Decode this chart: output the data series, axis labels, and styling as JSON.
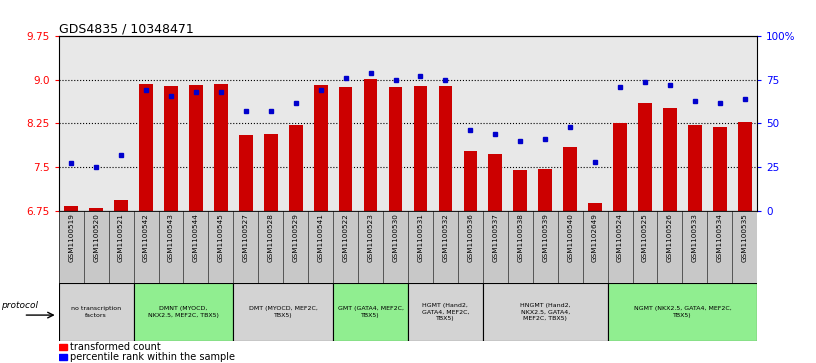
{
  "title": "GDS4835 / 10348471",
  "samples": [
    "GSM1100519",
    "GSM1100520",
    "GSM1100521",
    "GSM1100542",
    "GSM1100543",
    "GSM1100544",
    "GSM1100545",
    "GSM1100527",
    "GSM1100528",
    "GSM1100529",
    "GSM1100541",
    "GSM1100522",
    "GSM1100523",
    "GSM1100530",
    "GSM1100531",
    "GSM1100532",
    "GSM1100536",
    "GSM1100537",
    "GSM1100538",
    "GSM1100539",
    "GSM1100540",
    "GSM1102649",
    "GSM1100524",
    "GSM1100525",
    "GSM1100526",
    "GSM1100533",
    "GSM1100534",
    "GSM1100535"
  ],
  "bar_values": [
    6.82,
    6.79,
    6.93,
    8.93,
    8.9,
    8.92,
    8.93,
    8.05,
    8.07,
    8.22,
    8.91,
    8.88,
    9.02,
    8.87,
    8.9,
    8.89,
    7.78,
    7.73,
    7.45,
    7.47,
    7.84,
    6.88,
    8.26,
    8.6,
    8.52,
    8.22,
    8.19,
    8.28
  ],
  "dot_values": [
    27,
    25,
    32,
    69,
    66,
    68,
    68,
    57,
    57,
    62,
    69,
    76,
    79,
    75,
    77,
    75,
    46,
    44,
    40,
    41,
    48,
    28,
    71,
    74,
    72,
    63,
    62,
    64
  ],
  "protocol_groups": [
    {
      "label": "no transcription\nfactors",
      "start": 0,
      "end": 3,
      "color": "#d3d3d3"
    },
    {
      "label": "DMNT (MYOCD,\nNKX2.5, MEF2C, TBX5)",
      "start": 3,
      "end": 7,
      "color": "#90EE90"
    },
    {
      "label": "DMT (MYOCD, MEF2C,\nTBX5)",
      "start": 7,
      "end": 11,
      "color": "#d3d3d3"
    },
    {
      "label": "GMT (GATA4, MEF2C,\nTBX5)",
      "start": 11,
      "end": 14,
      "color": "#90EE90"
    },
    {
      "label": "HGMT (Hand2,\nGATA4, MEF2C,\nTBX5)",
      "start": 14,
      "end": 17,
      "color": "#d3d3d3"
    },
    {
      "label": "HNGMT (Hand2,\nNKX2.5, GATA4,\nMEF2C, TBX5)",
      "start": 17,
      "end": 22,
      "color": "#d3d3d3"
    },
    {
      "label": "NGMT (NKX2.5, GATA4, MEF2C,\nTBX5)",
      "start": 22,
      "end": 28,
      "color": "#90EE90"
    }
  ],
  "ylim_left": [
    6.75,
    9.75
  ],
  "ylim_right": [
    0,
    100
  ],
  "yticks_left": [
    6.75,
    7.5,
    8.25,
    9.0,
    9.75
  ],
  "yticks_right": [
    0,
    25,
    50,
    75,
    100
  ],
  "bar_color": "#CC0000",
  "dot_color": "#0000CC",
  "background_color": "#ffffff",
  "plot_bg_color": "#e8e8e8",
  "label_row_color": "#c8c8c8"
}
